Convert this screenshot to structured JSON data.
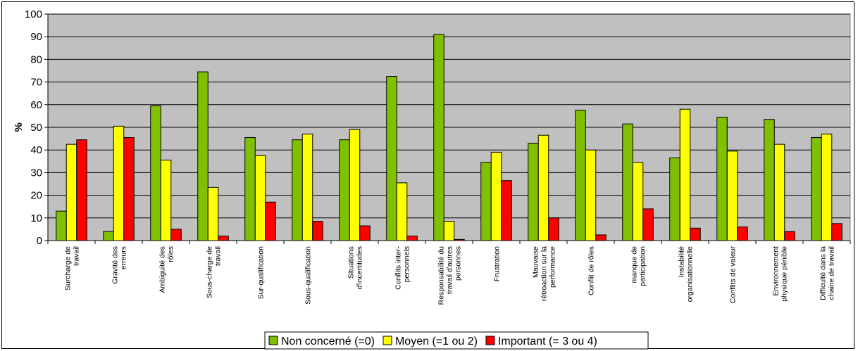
{
  "chart_data": {
    "type": "bar",
    "title": "",
    "xlabel": "",
    "ylabel": "%",
    "ylim": [
      0,
      100
    ],
    "yticks": [
      0,
      10,
      20,
      30,
      40,
      50,
      60,
      70,
      80,
      90,
      100
    ],
    "grid": true,
    "legend_position": "bottom",
    "categories": [
      [
        "Surcharge de",
        "travail"
      ],
      [
        "Gravité des",
        "erreurs"
      ],
      [
        "Ambiguité des",
        "rôles"
      ],
      [
        "Sous-charge de",
        "travail"
      ],
      [
        "Sur-qualification"
      ],
      [
        "Sous-qualification"
      ],
      [
        "Situations",
        "d'incertitudes"
      ],
      [
        "Conflits inter-",
        "personnels"
      ],
      [
        "Responsabilité du",
        "travail d'autres",
        "personnes"
      ],
      [
        "Frustration"
      ],
      [
        "Mauvaise",
        "rétroaction sur la",
        "performance"
      ],
      [
        "Conflit de rôles"
      ],
      [
        "manque de",
        "participation"
      ],
      [
        "Instabilité",
        "organisationnelle"
      ],
      [
        "Conflits de valeur"
      ],
      [
        "Environnement",
        "physique pénible"
      ],
      [
        "Difficulté dans la",
        "chaine de travail"
      ]
    ],
    "series": [
      {
        "name": "Non concerné (=0)",
        "color": "#80c000",
        "values": [
          13,
          4,
          59.5,
          74.5,
          45.5,
          44.5,
          44.5,
          72.5,
          91,
          34.5,
          43,
          57.5,
          51.5,
          36.5,
          54.5,
          53.5,
          45.5
        ]
      },
      {
        "name": "Moyen (=1 ou 2)",
        "color": "#ffff00",
        "values": [
          42.5,
          50.5,
          35.5,
          23.5,
          37.5,
          47,
          49,
          25.5,
          8.5,
          39,
          46.5,
          40,
          34.5,
          58,
          39.5,
          42.5,
          47
        ]
      },
      {
        "name": "Important (= 3 ou 4)",
        "color": "#ff0000",
        "values": [
          44.5,
          45.5,
          5,
          2,
          17,
          8.5,
          6.5,
          2,
          0.5,
          26.5,
          10,
          2.5,
          14,
          5.5,
          6,
          4,
          7.5
        ]
      }
    ],
    "plot_background": "#c0c0c0"
  }
}
